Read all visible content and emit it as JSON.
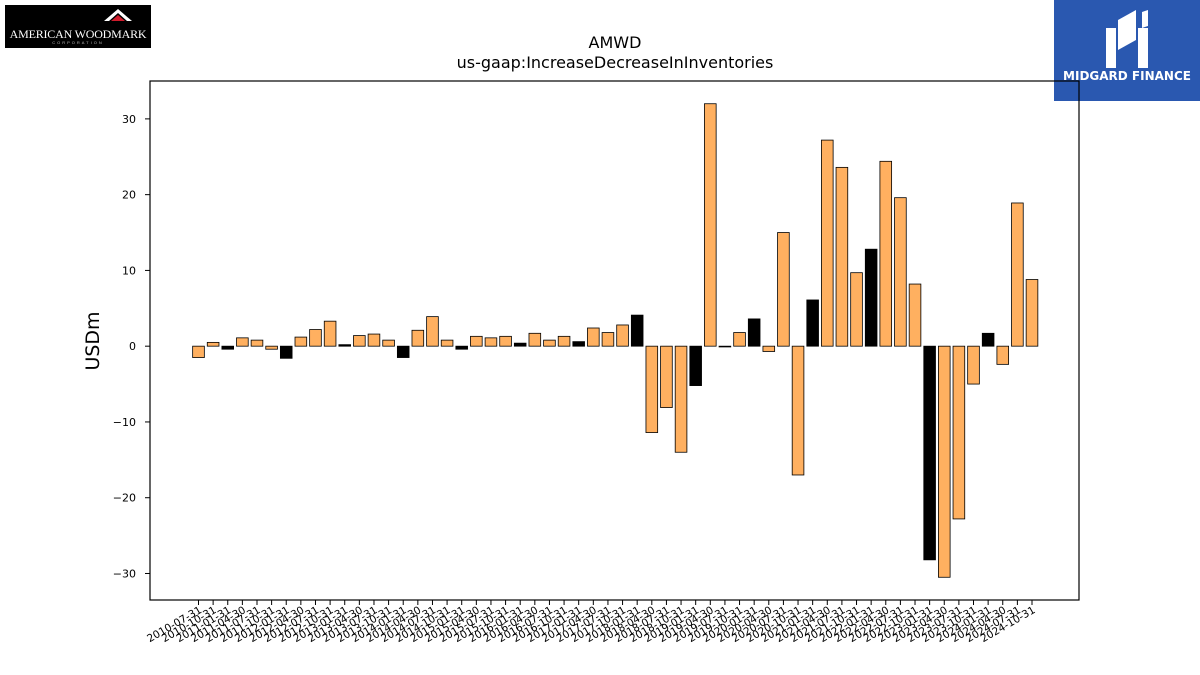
{
  "logos": {
    "left": {
      "name": "AMERICAN WOODMARK",
      "sub": "CORPORATION"
    },
    "right": {
      "name": "MIDGARD FINANCE"
    }
  },
  "chart_data": {
    "type": "bar",
    "title": "AMWD",
    "subtitle": "us-gaap:IncreaseDecreaseInInventories",
    "ylabel": "USDm",
    "xlabel": "",
    "ylim": [
      -33.5,
      35.0
    ],
    "yticks": [
      -30,
      -20,
      -10,
      0,
      10,
      20,
      30
    ],
    "grid": false,
    "colors": {
      "default": "#FFB060",
      "highlight": "#000000",
      "edge": "#000000"
    },
    "tick_labels_shown": [
      "2010-07-31",
      "2010-10-31",
      "2011-01-31",
      "2011-04-30",
      "2011-07-31",
      "2011-10-31",
      "2012-01-31",
      "2012-04-30",
      "2012-07-31",
      "2012-10-31",
      "2013-01-31",
      "2013-04-30",
      "2013-07-31",
      "2013-10-31",
      "2014-01-31",
      "2014-04-30",
      "2014-07-31",
      "2014-10-31",
      "2015-01-31",
      "2015-04-30",
      "2015-07-31",
      "2015-10-31",
      "2016-01-31",
      "2016-04-30",
      "2016-07-31",
      "2016-10-31",
      "2017-01-31",
      "2017-04-30",
      "2017-07-31",
      "2017-10-31",
      "2018-01-31",
      "2018-04-30",
      "2018-07-31",
      "2018-10-31",
      "2019-01-31",
      "2019-04-30",
      "2019-07-31",
      "2019-10-31",
      "2020-01-31",
      "2020-04-30",
      "2020-07-31",
      "2020-10-31",
      "2021-01-31",
      "2021-04-30",
      "2021-07-31",
      "2021-10-31",
      "2022-01-31",
      "2022-04-30",
      "2022-07-31",
      "2022-10-31",
      "2023-01-31",
      "2023-04-30",
      "2023-07-31",
      "2023-10-31",
      "2024-01-31",
      "2024-04-30",
      "2024-07-31",
      "2024-10-31"
    ],
    "values": [
      -1.5,
      0.5,
      -0.4,
      1.1,
      0.8,
      -0.4,
      -1.6,
      1.2,
      2.2,
      3.3,
      0.2,
      1.4,
      1.6,
      0.8,
      -1.5,
      2.1,
      3.9,
      0.8,
      -0.4,
      1.3,
      1.1,
      1.3,
      0.4,
      1.7,
      0.8,
      1.3,
      0.6,
      2.4,
      1.8,
      2.8,
      4.1,
      -11.4,
      -8.1,
      -14.0,
      -5.2,
      32.0,
      -0.1,
      1.8,
      3.6,
      -0.7,
      15.0,
      -17.0,
      6.1,
      27.2,
      23.6,
      9.7,
      12.8,
      24.4,
      19.6,
      8.2,
      -28.2,
      -30.5,
      -22.8,
      -5.0,
      1.7,
      -2.4,
      18.9,
      8.8
    ],
    "highlight_index": [
      2,
      6,
      10,
      14,
      18,
      22,
      26,
      30,
      34,
      38,
      42,
      46,
      50,
      54
    ]
  }
}
